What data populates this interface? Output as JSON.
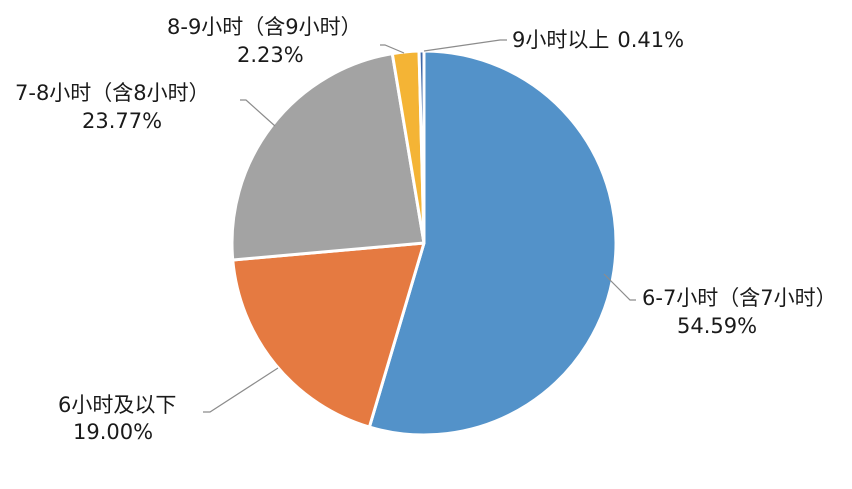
{
  "chart_data": {
    "type": "pie",
    "start_angle_deg": 0,
    "direction": "clockwise",
    "slices": [
      {
        "label": "6-7小时（含7小时）",
        "value_text": "54.59%",
        "value": 54.59,
        "color": "#5392c9"
      },
      {
        "label": "6小时及以下",
        "value_text": "19.00%",
        "value": 19.0,
        "color": "#e57a41"
      },
      {
        "label": "7-8小时（含8小时）",
        "value_text": "23.77%",
        "value": 23.77,
        "color": "#a3a3a3"
      },
      {
        "label": "8-9小时（含9小时）",
        "value_text": "2.23%",
        "value": 2.23,
        "color": "#f4b435"
      },
      {
        "label": "9小时以上",
        "value_text": "0.41%",
        "value": 0.41,
        "color": "#3f69a8"
      }
    ]
  }
}
